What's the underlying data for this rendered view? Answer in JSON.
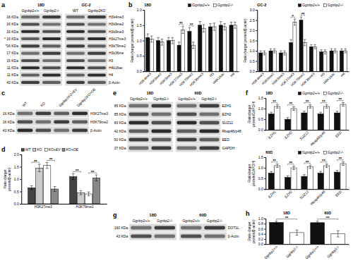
{
  "chart_data": [
    {
      "panel": "b",
      "type": "bar",
      "title": "18D",
      "y_label": "Ratio (target protein/β-actin)",
      "categories": [
        "H3K4me3",
        "H3K9me2",
        "H3K9me3",
        "H3K27me3",
        "H3K79me2",
        "H3K36me3",
        "H3",
        "H4K16ac",
        "H4"
      ],
      "series": [
        {
          "name": "Ggnbp2+/+",
          "color": "#111111",
          "values": [
            1.1,
            1.0,
            1.0,
            0.85,
            1.3,
            1.5,
            1.45,
            1.5,
            1.5
          ],
          "errors": [
            0.12,
            0.1,
            0.1,
            0.1,
            0.12,
            0.12,
            0.1,
            0.12,
            0.1
          ]
        },
        {
          "name": "Ggnbp2-/-",
          "color": "#ffffff",
          "values": [
            1.05,
            0.95,
            1.0,
            1.35,
            0.85,
            1.4,
            1.45,
            1.45,
            1.5
          ],
          "errors": [
            0.1,
            0.1,
            0.1,
            0.12,
            0.1,
            0.12,
            0.12,
            0.1,
            0.1
          ]
        }
      ],
      "ylim": [
        0,
        2
      ],
      "yticks": [
        {
          "value": 0,
          "label": "0.0"
        },
        0.5,
        {
          "value": 1,
          "label": "1.0"
        },
        1.5,
        {
          "value": 2,
          "label": "2.0"
        }
      ],
      "legend": "top-right",
      "annotations": [
        {
          "text": "**",
          "category": "H3K27me3"
        },
        {
          "text": "**",
          "category": "H3K79me2"
        }
      ]
    },
    {
      "type": "bar",
      "title": "GC-2",
      "y_label": "Ratio (target protein/β-actin)",
      "categories": [
        "H3K4me3",
        "H3K9me2",
        "H3K9me3",
        "H3K27me3",
        "H3K79me2",
        "H3K36me3",
        "H3",
        "H4K16ac",
        "H4"
      ],
      "series": [
        {
          "name": "Ggnbp2+/+",
          "color": "#111111",
          "values": [
            0.9,
            1.0,
            0.9,
            1.4,
            2.5,
            1.2,
            0.95,
            1.0,
            1.0
          ],
          "errors": [
            0.1,
            0.1,
            0.1,
            0.15,
            0.15,
            0.1,
            0.1,
            0.1,
            0.1
          ]
        },
        {
          "name": "Ggnbp2-/-",
          "color": "#ffffff",
          "values": [
            0.9,
            1.0,
            0.9,
            2.4,
            1.4,
            1.2,
            0.95,
            1.0,
            1.0
          ],
          "errors": [
            0.1,
            0.1,
            0.1,
            0.15,
            0.15,
            0.1,
            0.1,
            0.1,
            0.1
          ]
        }
      ],
      "ylim": [
        0,
        3
      ],
      "yticks": [
        {
          "value": 0,
          "label": "0.0"
        },
        0.5,
        {
          "value": 1,
          "label": "1.0"
        },
        1.5,
        {
          "value": 2,
          "label": "2.0"
        },
        2.5,
        {
          "value": 3,
          "label": "3.0"
        }
      ],
      "legend": "top-right",
      "annotations": [
        {
          "text": "*",
          "category": "H3K27me3"
        },
        {
          "text": "**",
          "category": "H3K79me2"
        }
      ]
    },
    {
      "panel": "d",
      "type": "bar",
      "y_label": "Ratio (target protein/β-actin)",
      "categories": [
        "H3K27me3",
        "H3K79me2"
      ],
      "series": [
        {
          "name": "WT",
          "color": "#444444",
          "values": [
            0.65,
            1.1
          ],
          "errors": [
            0.08,
            0.12
          ]
        },
        {
          "name": "KO",
          "color": "#cccccc",
          "values": [
            1.45,
            0.45
          ],
          "errors": [
            0.15,
            0.08
          ]
        },
        {
          "name": "KO+EV",
          "color": "#ffffff",
          "values": [
            1.55,
            0.4
          ],
          "errors": [
            0.12,
            0.08
          ]
        },
        {
          "name": "KO+OE",
          "color": "#888888",
          "values": [
            0.6,
            1.05
          ],
          "errors": [
            0.1,
            0.12
          ]
        }
      ],
      "ylim": [
        0,
        2
      ],
      "yticks": [
        {
          "value": 0,
          "label": "0.0"
        },
        0.5,
        {
          "value": 1,
          "label": "1.0"
        },
        1.5,
        {
          "value": 2,
          "label": "2.0"
        }
      ],
      "legend": "top-left",
      "annotations": [
        {
          "text": "**",
          "category": "H3K27me3",
          "between": [
            "WT",
            "KO"
          ]
        },
        {
          "text": "**",
          "category": "H3K27me3",
          "between": [
            "KO+EV",
            "KO+OE"
          ]
        },
        {
          "text": "**",
          "category": "H3K79me2",
          "between": [
            "WT",
            "KO"
          ]
        },
        {
          "text": "**",
          "category": "H3K79me2",
          "between": [
            "KO+EV",
            "KO+OE"
          ]
        }
      ]
    },
    {
      "panel": "f",
      "type": "bar",
      "title": "18D",
      "y_label": "Ratio(target protein/GAPDH)",
      "categories": [
        "EZH1",
        "EZH2",
        "SUZ12",
        "Rbap46/p48",
        "EED"
      ],
      "series": [
        {
          "name": "Ggnbp2+/+",
          "color": "#111111",
          "values": [
            0.75,
            0.5,
            0.8,
            0.75,
            0.8
          ],
          "errors": [
            0.08,
            0.08,
            0.08,
            0.08,
            0.08
          ]
        },
        {
          "name": "Ggnbp2-/-",
          "color": "#ffffff",
          "values": [
            1.1,
            1.0,
            1.1,
            1.1,
            1.2
          ],
          "errors": [
            0.08,
            0.08,
            0.08,
            0.08,
            0.08
          ]
        }
      ],
      "ylim": [
        0,
        1.5
      ],
      "yticks": [
        {
          "value": 0,
          "label": "0.0"
        },
        0.5,
        {
          "value": 1,
          "label": "1.0"
        },
        1.5
      ],
      "legend": "top-right",
      "annotations": [
        {
          "text": "**",
          "category": "EZH1"
        },
        {
          "text": "**",
          "category": "EZH2"
        },
        {
          "text": "**",
          "category": "SUZ12"
        },
        {
          "text": "**",
          "category": "Rbap46/p48"
        },
        {
          "text": "**",
          "category": "EED"
        }
      ]
    },
    {
      "type": "bar",
      "title": "60D",
      "y_label": "Ratio(target protein/GAPDH)",
      "categories": [
        "EZH1",
        "EZH2",
        "SUZ12",
        "Rbap46/p48",
        "EED"
      ],
      "series": [
        {
          "name": "Ggnbp2+/+",
          "color": "#111111",
          "values": [
            0.75,
            0.55,
            0.6,
            0.75,
            0.8
          ],
          "errors": [
            0.08,
            0.08,
            0.08,
            0.08,
            0.08
          ]
        },
        {
          "name": "Ggnbp2-/-",
          "color": "#ffffff",
          "values": [
            1.1,
            1.0,
            1.05,
            1.1,
            1.2
          ],
          "errors": [
            0.08,
            0.08,
            0.08,
            0.08,
            0.08
          ]
        }
      ],
      "ylim": [
        0,
        1.5
      ],
      "yticks": [
        {
          "value": 0,
          "label": "0.0"
        },
        0.5,
        {
          "value": 1,
          "label": "1.0"
        },
        1.5
      ],
      "legend": "top-right",
      "annotations": [
        {
          "text": "**",
          "category": "EZH1"
        },
        {
          "text": "**",
          "category": "EZH2"
        },
        {
          "text": "**",
          "category": "SUZ12"
        },
        {
          "text": "**",
          "category": "Rbap46/p48"
        },
        {
          "text": "**",
          "category": "EED"
        }
      ]
    },
    {
      "panel": "h",
      "type": "bar",
      "y_label": "Ratio (target protein/β-actin)",
      "categories": [
        "Ggnbp2+/+",
        "Ggnbp2-/-",
        "Ggnbp2+/+",
        "Ggnbp2-/-"
      ],
      "values": [
        0.85,
        0.45,
        0.84,
        0.4
      ],
      "errors": [
        0.05,
        0.1,
        0.06,
        0.12
      ],
      "colors": [
        "#111111",
        "#ffffff",
        "#111111",
        "#ffffff"
      ],
      "ylim": [
        0,
        1
      ],
      "yticks": [
        {
          "value": 0,
          "label": "0.0"
        },
        0.2,
        0.4,
        0.6,
        0.8,
        {
          "value": 1,
          "label": "1.0"
        }
      ],
      "group_labels": [
        {
          "text": "18D",
          "categories": [
            0,
            1
          ]
        },
        {
          "text": "60D",
          "categories": [
            2,
            3
          ]
        }
      ],
      "annotations": [
        {
          "text": "**",
          "categories": [
            0,
            1
          ]
        },
        {
          "text": "**",
          "categories": [
            2,
            3
          ]
        }
      ]
    }
  ],
  "blots": [
    {
      "panel": "a",
      "groups": [
        {
          "label": "18D",
          "lanes": [
            "Ggnbp2+/+",
            "Ggnbp2-/-"
          ]
        },
        {
          "label": "GC-2",
          "lanes": [
            "WT",
            "Ggnbp2KO"
          ]
        }
      ],
      "rows": [
        {
          "size": "16 KDa",
          "protein": "H3k4me3"
        },
        {
          "size": "16 KDa",
          "protein": "H3k9me2"
        },
        {
          "size": "16 KDa",
          "protein": "H3k9me3"
        },
        {
          "size": "* 16 KDa",
          "protein": "H3k27me3"
        },
        {
          "size": "*16 KDa",
          "protein": "H3k79me2"
        },
        {
          "size": "17 KDa",
          "protein": "H3k36me"
        },
        {
          "size": "15 KDa",
          "protein": "H3"
        },
        {
          "size": "11 KDa",
          "protein": "H4k16ac"
        },
        {
          "size": "11 KDa",
          "protein": "H4"
        },
        {
          "size": "43 KDa",
          "protein": "β-Actin"
        }
      ]
    },
    {
      "panel": "c",
      "groups": [
        {
          "lanes": [
            "WT",
            "KO",
            "Ggnbp2KO+EV",
            "Ggnbp2KO+OE"
          ]
        }
      ],
      "rows": [
        {
          "size": "16 KDa",
          "protein": "H3K27me3"
        },
        {
          "size": "16 KDa",
          "protein": "H3K79me2"
        },
        {
          "size": "43 KDa",
          "protein": "β-Actin"
        }
      ]
    },
    {
      "panel": "e",
      "groups": [
        {
          "label": "18D",
          "lanes": [
            "Ggnbp2+/+",
            "Ggnbp2-/-"
          ]
        },
        {
          "label": "60D",
          "lanes": [
            "Ggnbp2+/+",
            "Ggnbp2-/-"
          ]
        }
      ],
      "rows": [
        {
          "size": "85 KDa",
          "protein": "EZH1"
        },
        {
          "size": "85 KDa",
          "protein": "EZH2"
        },
        {
          "size": "83 KDa",
          "protein": "SUZ12"
        },
        {
          "size": "42 KDa",
          "protein": "Rbap46/p48"
        },
        {
          "size": "50 KDa",
          "protein": "EED"
        },
        {
          "size": "37 KDa",
          "protein": "GAPDH"
        }
      ]
    },
    {
      "panel": "g",
      "groups": [
        {
          "label": "18D",
          "lanes": [
            "Ggnbp2+/+",
            "Ggnbp2-/-"
          ]
        },
        {
          "label": "60D",
          "lanes": [
            "Ggnbp2+/+",
            "Ggnbp2-/-"
          ]
        }
      ],
      "rows": [
        {
          "size": "160 KDa",
          "protein": "DOT1L"
        },
        {
          "size": "43 KDa",
          "protein": "β-Actin"
        }
      ]
    }
  ]
}
